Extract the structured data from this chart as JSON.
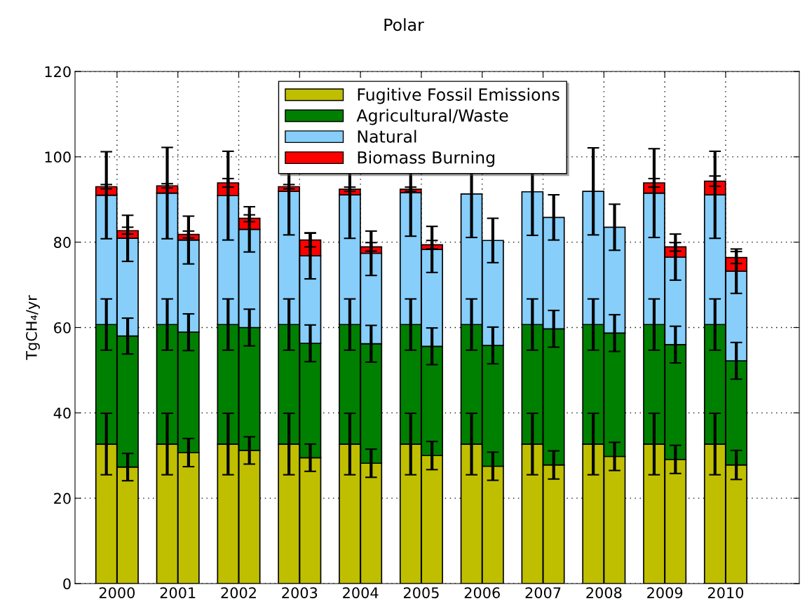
{
  "chart_data": {
    "type": "bar",
    "title": "Polar",
    "ylabel": "TgCH₄/yr",
    "stacked": true,
    "xlim": [
      1999.31,
      2011.21
    ],
    "xticks": [
      2000,
      2001,
      2002,
      2003,
      2004,
      2005,
      2006,
      2007,
      2008,
      2009,
      2010
    ],
    "ylim": [
      0,
      120
    ],
    "yticks": [
      0,
      20,
      40,
      60,
      80,
      100,
      120
    ],
    "grid": true,
    "legend": "top",
    "x": [
      1999.825,
      2000.175,
      2000.825,
      2001.175,
      2001.825,
      2002.175,
      2002.825,
      2003.175,
      2003.825,
      2004.175,
      2004.825,
      2005.175,
      2005.825,
      2006.175,
      2006.825,
      2007.175,
      2007.825,
      2008.175,
      2008.825,
      2009.175,
      2009.825,
      2010.175
    ],
    "series": [
      {
        "name": "Fugitive Fossil Emissions",
        "color": "#bfbf00",
        "values": [
          32.7,
          27.3,
          32.7,
          30.7,
          32.7,
          31.2,
          32.7,
          29.5,
          32.7,
          28.2,
          32.7,
          30.0,
          32.7,
          27.5,
          32.7,
          27.8,
          32.7,
          29.8,
          32.7,
          29.1,
          32.7,
          27.8
        ],
        "errors": [
          7.2,
          3.2,
          7.2,
          3.3,
          7.2,
          3.2,
          7.2,
          3.2,
          7.2,
          3.3,
          7.2,
          3.3,
          7.2,
          3.3,
          7.2,
          3.3,
          7.2,
          3.3,
          7.2,
          3.3,
          7.2,
          3.4
        ]
      },
      {
        "name": "Agricultural/Waste",
        "color": "#008000",
        "values": [
          28.0,
          30.7,
          28.0,
          28.2,
          28.0,
          28.8,
          28.0,
          26.8,
          28.0,
          28.0,
          28.0,
          25.6,
          28.0,
          28.3,
          28.0,
          31.9,
          28.0,
          28.9,
          28.0,
          26.9,
          28.0,
          24.4
        ],
        "errors": [
          6.0,
          4.2,
          6.0,
          4.3,
          6.0,
          4.3,
          6.0,
          4.3,
          6.0,
          4.3,
          6.0,
          4.3,
          6.0,
          4.3,
          6.0,
          4.3,
          6.0,
          4.3,
          6.0,
          4.3,
          6.0,
          4.3
        ]
      },
      {
        "name": "Natural",
        "color": "#87cefa",
        "values": [
          30.3,
          22.9,
          30.8,
          21.6,
          30.2,
          23.0,
          31.2,
          20.5,
          30.4,
          21.2,
          30.9,
          22.7,
          30.6,
          24.6,
          31.1,
          26.1,
          31.2,
          24.8,
          30.8,
          20.5,
          30.4,
          21.0
        ],
        "errors": [
          10.2,
          5.4,
          10.7,
          5.6,
          10.4,
          5.3,
          10.2,
          5.4,
          10.2,
          5.2,
          10.2,
          5.4,
          10.2,
          5.2,
          10.2,
          5.3,
          10.2,
          5.4,
          10.4,
          5.4,
          10.2,
          5.2
        ]
      },
      {
        "name": "Biomass Burning",
        "color": "#ff0000",
        "values": [
          2.0,
          1.8,
          1.7,
          1.3,
          3.0,
          2.6,
          1.1,
          3.7,
          1.3,
          1.5,
          0.8,
          1.1,
          0,
          0,
          0,
          0,
          0,
          0,
          2.4,
          2.4,
          3.2,
          3.2
        ],
        "errors": [
          0.5,
          0.8,
          0.5,
          0.8,
          1.0,
          0.8,
          0.5,
          1.6,
          0.5,
          1.0,
          0.5,
          1.0,
          null,
          null,
          null,
          null,
          null,
          null,
          1.0,
          1.0,
          1.2,
          1.4
        ]
      }
    ]
  }
}
